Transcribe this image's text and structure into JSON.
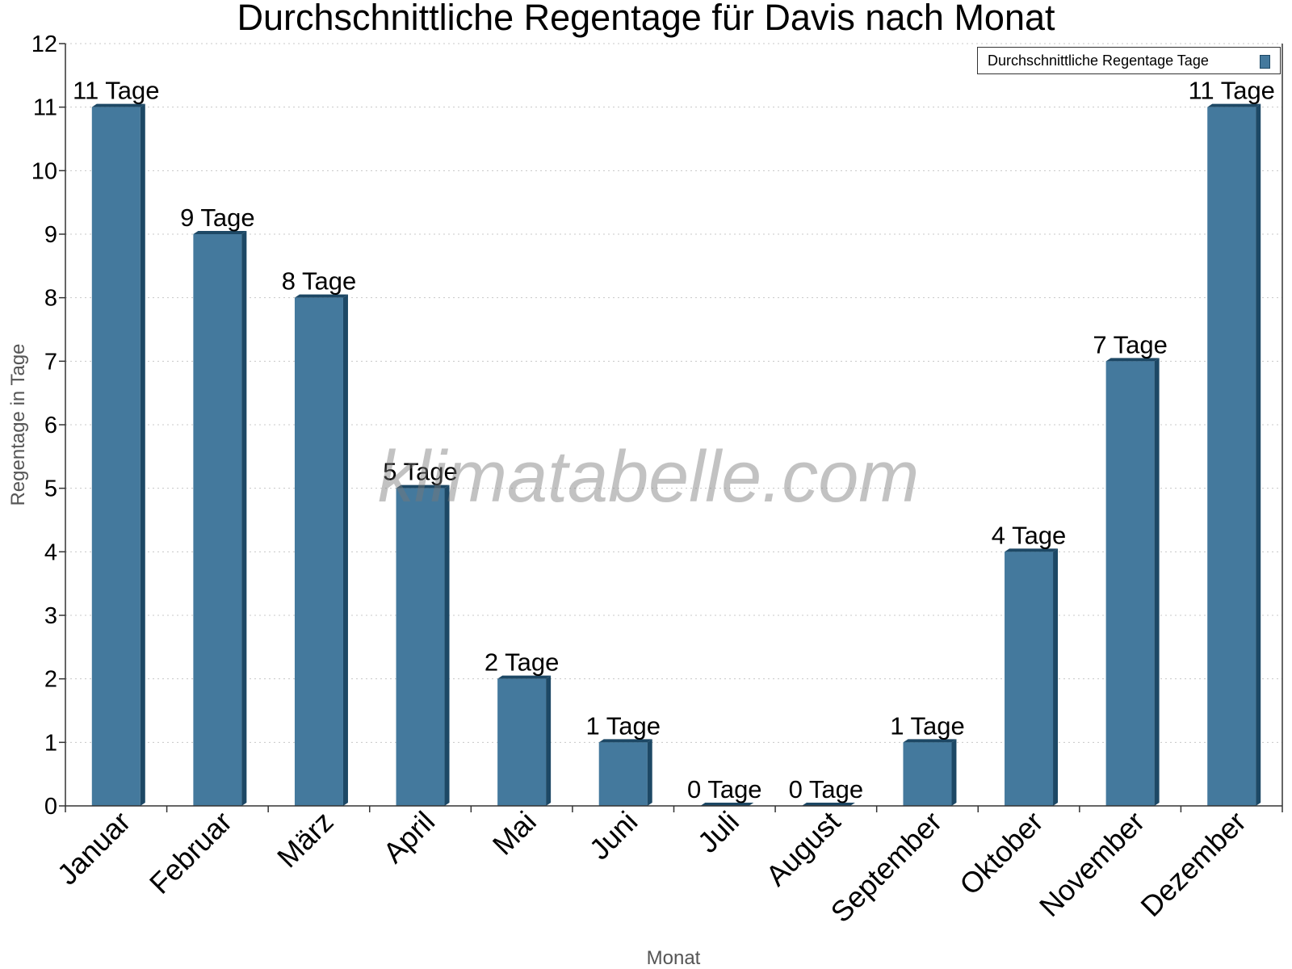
{
  "chart_data": {
    "type": "bar",
    "title": "Durchschnittliche Regentage für Davis nach Monat",
    "xlabel": "Monat",
    "ylabel": "Regentage in Tage",
    "ylim": [
      0,
      12
    ],
    "yticks": [
      "0",
      "1",
      "2",
      "3",
      "4",
      "5",
      "6",
      "7",
      "8",
      "9",
      "10",
      "11",
      "12"
    ],
    "grid": true,
    "legend_position": "top-right",
    "categories": [
      "Januar",
      "Februar",
      "März",
      "April",
      "Mai",
      "Juni",
      "Juli",
      "August",
      "September",
      "Oktober",
      "November",
      "Dezember"
    ],
    "series": [
      {
        "name": "Durchschnittliche Regentage Tage",
        "values": [
          11,
          9,
          8,
          5,
          2,
          1,
          0,
          0,
          1,
          4,
          7,
          11
        ],
        "data_labels": [
          "11 Tage",
          "9 Tage",
          "8 Tage",
          "5 Tage",
          "2 Tage",
          "1 Tage",
          "0 Tage",
          "0 Tage",
          "1 Tage",
          "4 Tage",
          "7 Tage",
          "11 Tage"
        ],
        "color": "#44799d",
        "side_color": "#1d4865"
      }
    ],
    "watermark": "klimatabelle.com"
  }
}
